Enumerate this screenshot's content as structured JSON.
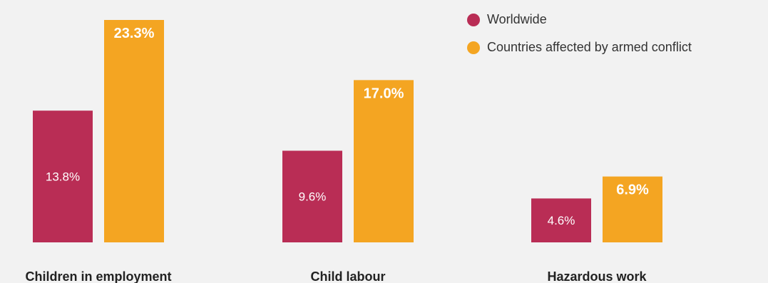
{
  "colors": {
    "background": "#f2f2f2",
    "worldwide": "#b92d55",
    "conflict": "#f4a522",
    "label_dark": "#222222",
    "value_light": "#ffffff"
  },
  "legend": {
    "items": [
      {
        "label": "Worldwide",
        "color": "#b92d55"
      },
      {
        "label": "Countries affected by armed conflict",
        "color": "#f4a522"
      }
    ]
  },
  "chart_data": {
    "type": "bar",
    "categories": [
      "Children in employment",
      "Child labour",
      "Hazardous work"
    ],
    "series": [
      {
        "name": "Worldwide",
        "values": [
          13.8,
          9.6,
          4.6
        ],
        "labels": [
          "13.8%",
          "9.6%",
          "4.6%"
        ]
      },
      {
        "name": "Countries affected by armed conflict",
        "values": [
          23.3,
          17.0,
          6.9
        ],
        "labels": [
          "23.3%",
          "17.0%",
          "6.9%"
        ]
      }
    ],
    "ylim": [
      0,
      23.3
    ],
    "grid": false,
    "legend_position": "top-right",
    "title": "",
    "xlabel": "",
    "ylabel": ""
  }
}
